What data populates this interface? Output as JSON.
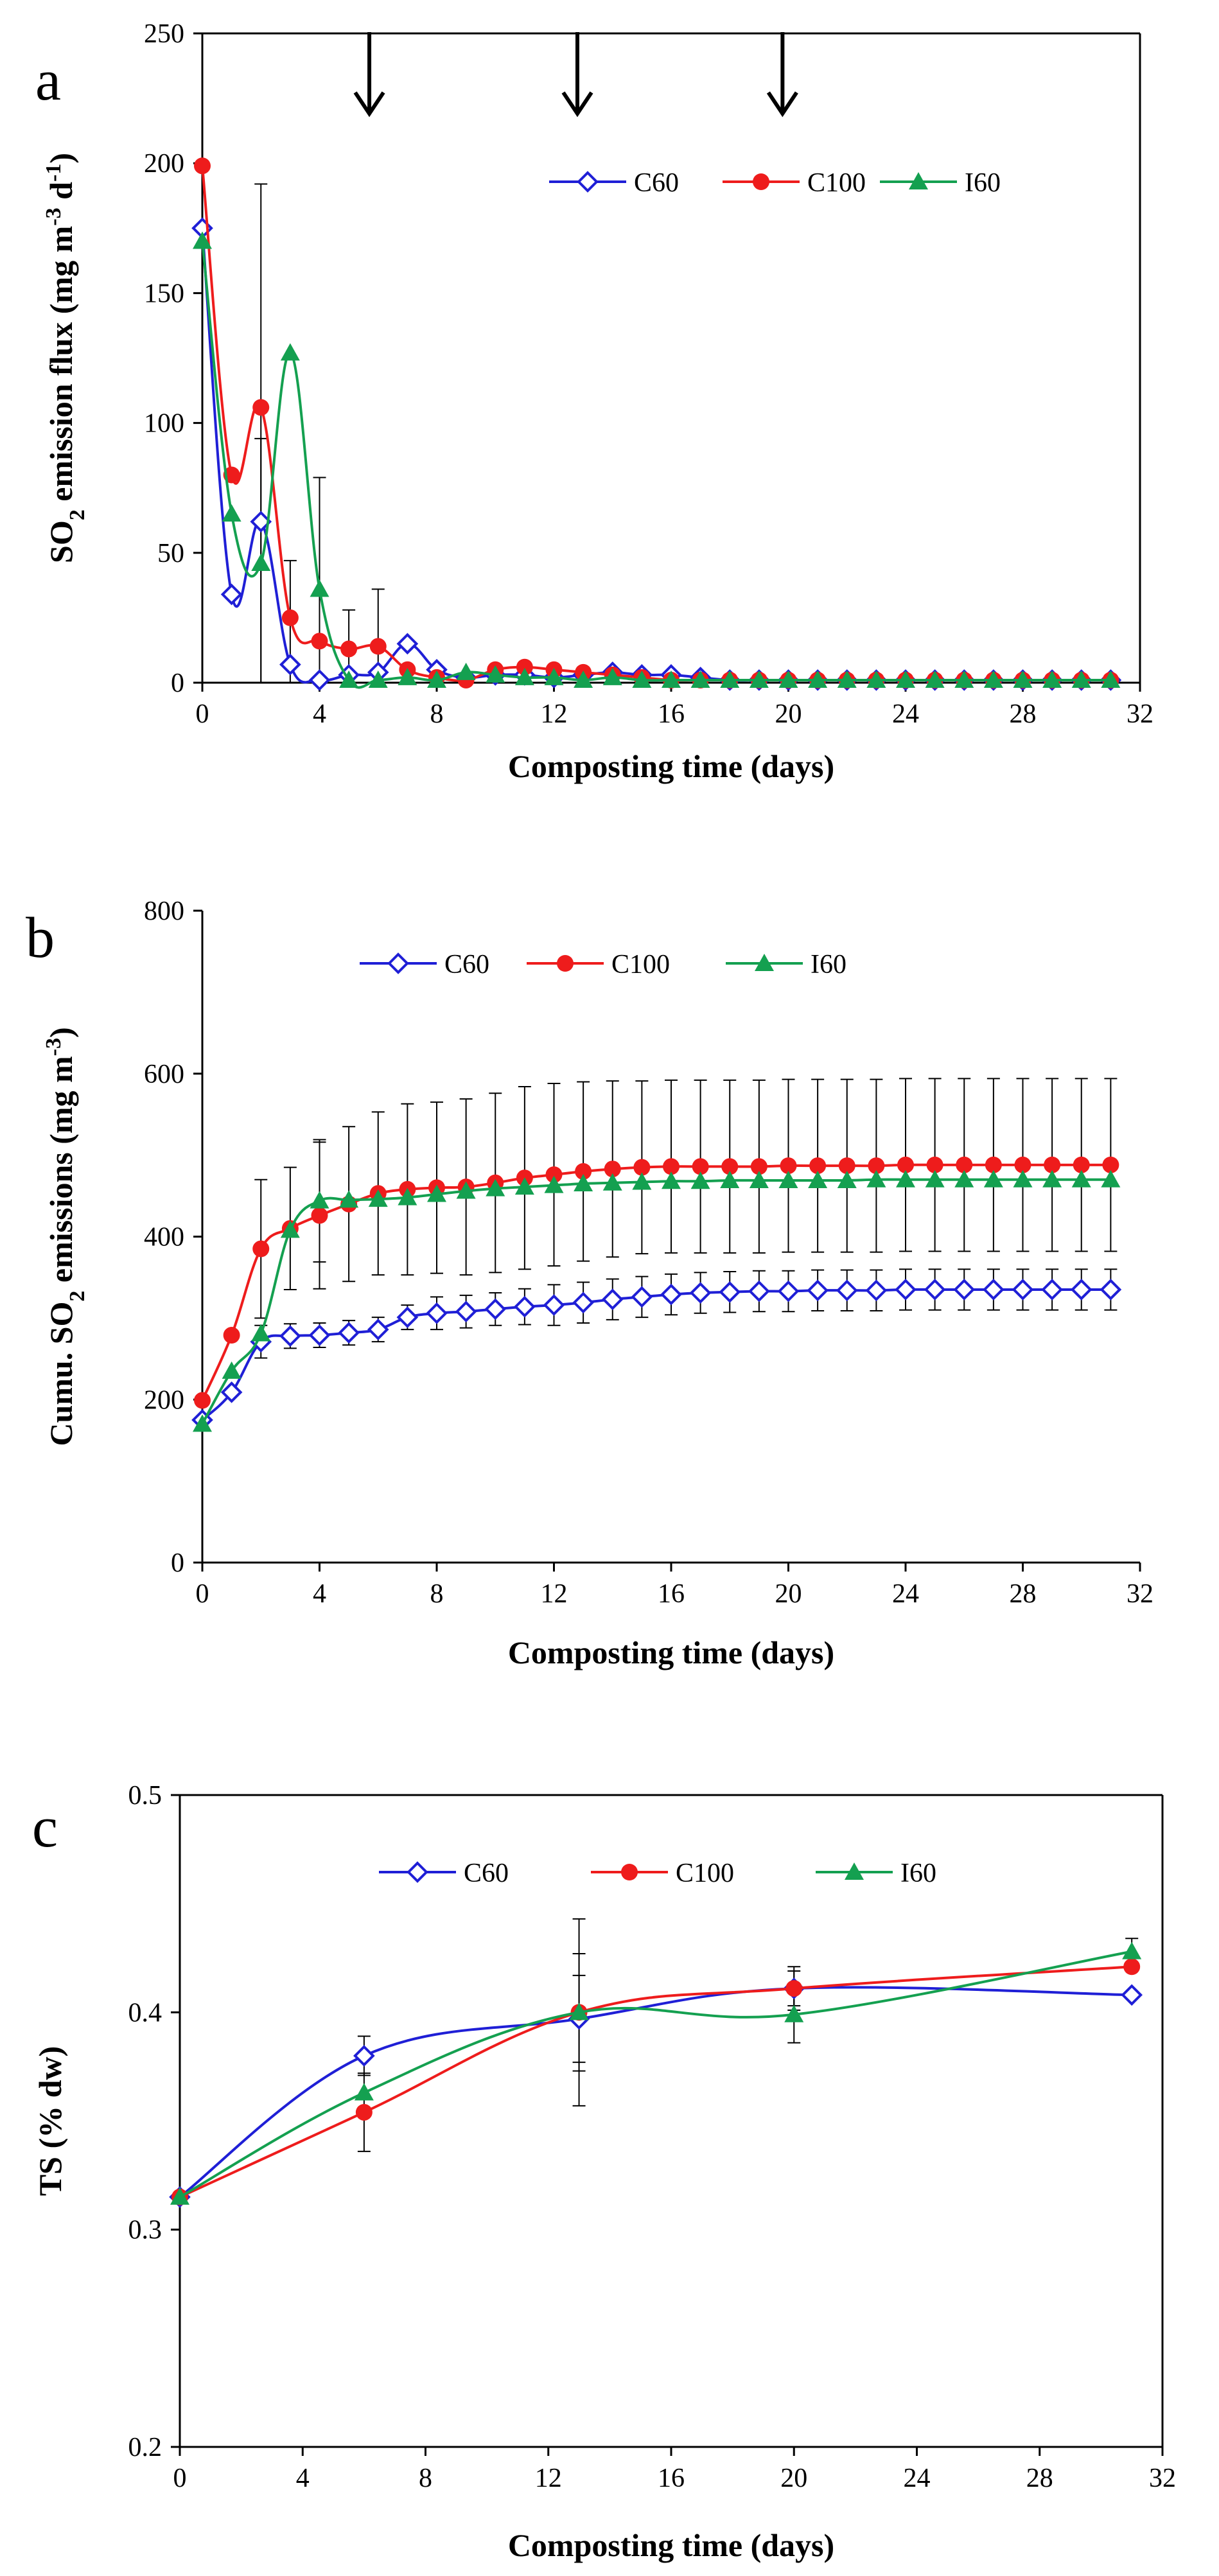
{
  "chart_data": [
    {
      "panel": "a",
      "type": "line",
      "title": "",
      "xlabel": "Composting time (days)",
      "ylabel_parts": [
        "SO",
        "2",
        " emission flux  (mg m",
        "-3",
        " d",
        "-1",
        ")"
      ],
      "xlim": [
        0,
        32
      ],
      "ylim": [
        0,
        250
      ],
      "xticks": [
        "0",
        "4",
        "8",
        "12",
        "16",
        "20",
        "24",
        "28",
        "32"
      ],
      "yticks": [
        "0",
        "50",
        "100",
        "150",
        "200",
        "250"
      ],
      "arrows_at_days": [
        5.7,
        12.8,
        19.8
      ],
      "legend": [
        "C60",
        "C100",
        "I60"
      ],
      "series": [
        {
          "name": "C60",
          "color": "#1f1fd6",
          "marker": "diamond-open",
          "x": [
            0,
            1,
            2,
            3,
            4,
            5,
            6,
            7,
            8,
            9,
            10,
            11,
            12,
            13,
            14,
            15,
            16,
            17,
            18,
            19,
            20,
            21,
            22,
            23,
            24,
            25,
            26,
            27,
            28,
            29,
            30,
            31
          ],
          "y": [
            175,
            34,
            62,
            7,
            1,
            3,
            4,
            15,
            5,
            2,
            3,
            3,
            2,
            3,
            4,
            3,
            3,
            2,
            1,
            1,
            1,
            1,
            1,
            1,
            1,
            1,
            1,
            1,
            1,
            1,
            1,
            1
          ],
          "err": [
            0,
            0,
            130,
            40,
            0,
            0,
            0,
            0,
            0,
            0,
            0,
            0,
            0,
            0,
            0,
            0,
            0,
            0,
            0,
            0,
            0,
            0,
            0,
            0,
            0,
            0,
            0,
            0,
            0,
            0,
            0,
            0
          ]
        },
        {
          "name": "C100",
          "color": "#ee1c1c",
          "marker": "circle",
          "x": [
            0,
            1,
            2,
            3,
            4,
            5,
            6,
            7,
            8,
            9,
            10,
            11,
            12,
            13,
            14,
            15,
            16,
            17,
            18,
            19,
            20,
            21,
            22,
            23,
            24,
            25,
            26,
            27,
            28,
            29,
            30,
            31
          ],
          "y": [
            199,
            80,
            106,
            25,
            16,
            13,
            14,
            5,
            2,
            1,
            5,
            6,
            5,
            4,
            3,
            2,
            1,
            1,
            1,
            1,
            1,
            1,
            1,
            1,
            1,
            1,
            1,
            1,
            1,
            1,
            1,
            1
          ],
          "err": [
            0,
            0,
            0,
            0,
            0,
            15,
            22,
            0,
            0,
            0,
            0,
            0,
            0,
            0,
            0,
            0,
            0,
            0,
            0,
            0,
            0,
            0,
            0,
            0,
            0,
            0,
            0,
            0,
            0,
            0,
            0,
            0
          ]
        },
        {
          "name": "I60",
          "color": "#14a050",
          "marker": "triangle",
          "x": [
            0,
            1,
            2,
            3,
            4,
            5,
            6,
            7,
            8,
            9,
            10,
            11,
            12,
            13,
            14,
            15,
            16,
            17,
            18,
            19,
            20,
            21,
            22,
            23,
            24,
            25,
            26,
            27,
            28,
            29,
            30,
            31
          ],
          "y": [
            170,
            65,
            46,
            127,
            36,
            1,
            1,
            2,
            1,
            4,
            3,
            2,
            2,
            1,
            2,
            1,
            1,
            1,
            1,
            1,
            1,
            1,
            1,
            1,
            1,
            1,
            1,
            1,
            1,
            1,
            1,
            1
          ],
          "err": [
            0,
            0,
            48,
            0,
            43,
            0,
            0,
            0,
            0,
            0,
            0,
            0,
            0,
            0,
            0,
            0,
            0,
            0,
            0,
            0,
            0,
            0,
            0,
            0,
            0,
            0,
            0,
            0,
            0,
            0,
            0,
            0
          ]
        }
      ]
    },
    {
      "panel": "b",
      "type": "line",
      "title": "",
      "xlabel": "Composting time (days)",
      "ylabel_parts": [
        "Cumu. SO",
        "2",
        " emissions (mg m",
        "-3",
        ")"
      ],
      "xlim": [
        0,
        32
      ],
      "ylim": [
        0,
        800
      ],
      "xticks": [
        "0",
        "4",
        "8",
        "12",
        "16",
        "20",
        "24",
        "28",
        "32"
      ],
      "yticks": [
        "0",
        "200",
        "400",
        "600",
        "800"
      ],
      "legend": [
        "C60",
        "C100",
        "I60"
      ],
      "series": [
        {
          "name": "C60",
          "color": "#1f1fd6",
          "marker": "diamond-open",
          "x": [
            0,
            1,
            2,
            3,
            4,
            5,
            6,
            7,
            8,
            9,
            10,
            11,
            12,
            13,
            14,
            15,
            16,
            17,
            18,
            19,
            20,
            21,
            22,
            23,
            24,
            25,
            26,
            27,
            28,
            29,
            30,
            31
          ],
          "y": [
            175,
            209,
            271,
            278,
            279,
            282,
            286,
            301,
            306,
            308,
            311,
            314,
            316,
            319,
            323,
            326,
            329,
            331,
            332,
            333,
            333,
            334,
            334,
            334,
            335,
            335,
            335,
            335,
            335,
            335,
            335,
            335
          ],
          "err": [
            0,
            0,
            20,
            15,
            15,
            15,
            15,
            15,
            20,
            20,
            20,
            22,
            25,
            25,
            25,
            25,
            25,
            25,
            25,
            25,
            25,
            25,
            25,
            25,
            25,
            25,
            25,
            25,
            25,
            25,
            25,
            25
          ]
        },
        {
          "name": "C100",
          "color": "#ee1c1c",
          "marker": "circle",
          "x": [
            0,
            1,
            2,
            3,
            4,
            5,
            6,
            7,
            8,
            9,
            10,
            11,
            12,
            13,
            14,
            15,
            16,
            17,
            18,
            19,
            20,
            21,
            22,
            23,
            24,
            25,
            26,
            27,
            28,
            29,
            30,
            31
          ],
          "y": [
            199,
            279,
            385,
            410,
            426,
            440,
            453,
            458,
            460,
            461,
            466,
            472,
            476,
            480,
            483,
            485,
            486,
            486,
            486,
            486,
            487,
            487,
            487,
            487,
            488,
            488,
            488,
            488,
            488,
            488,
            488,
            488
          ],
          "err": [
            0,
            0,
            85,
            75,
            90,
            95,
            100,
            105,
            105,
            108,
            110,
            112,
            112,
            110,
            108,
            106,
            106,
            106,
            106,
            106,
            106,
            106,
            106,
            106,
            106,
            106,
            106,
            106,
            106,
            106,
            106,
            106
          ]
        },
        {
          "name": "I60",
          "color": "#14a050",
          "marker": "triangle",
          "x": [
            0,
            1,
            2,
            3,
            4,
            5,
            6,
            7,
            8,
            9,
            10,
            11,
            12,
            13,
            14,
            15,
            16,
            17,
            18,
            19,
            20,
            21,
            22,
            23,
            24,
            25,
            26,
            27,
            28,
            29,
            30,
            31
          ],
          "y": [
            170,
            235,
            281,
            408,
            444,
            445,
            446,
            448,
            452,
            456,
            459,
            461,
            463,
            465,
            466,
            467,
            468,
            468,
            469,
            469,
            469,
            469,
            469,
            470,
            470,
            470,
            470,
            470,
            470,
            470,
            470,
            470
          ],
          "err": [
            0,
            0,
            0,
            0,
            75,
            0,
            0,
            0,
            0,
            0,
            0,
            0,
            0,
            0,
            0,
            0,
            0,
            0,
            0,
            0,
            0,
            0,
            0,
            0,
            0,
            0,
            0,
            0,
            0,
            0,
            0,
            0
          ]
        }
      ]
    },
    {
      "panel": "c",
      "type": "line",
      "title": "",
      "xlabel": "Composting time (days)",
      "ylabel_parts": [
        "TS (% dw)"
      ],
      "xlim": [
        0,
        32
      ],
      "ylim": [
        0.2,
        0.5
      ],
      "xticks": [
        "0",
        "4",
        "8",
        "12",
        "16",
        "20",
        "24",
        "28",
        "32"
      ],
      "yticks": [
        "0.2",
        "0.3",
        "0.4",
        "0.5"
      ],
      "legend": [
        "C60",
        "C100",
        "I60"
      ],
      "series": [
        {
          "name": "C60",
          "color": "#1f1fd6",
          "marker": "diamond-open",
          "x": [
            0,
            6,
            13,
            20,
            31
          ],
          "y": [
            0.315,
            0.38,
            0.397,
            0.411,
            0.408
          ],
          "err": [
            0,
            0.009,
            0.02,
            0.01,
            0
          ]
        },
        {
          "name": "C100",
          "color": "#ee1c1c",
          "marker": "circle",
          "x": [
            0,
            6,
            13,
            20,
            31
          ],
          "y": [
            0.315,
            0.354,
            0.4,
            0.411,
            0.421
          ],
          "err": [
            0,
            0.018,
            0.043,
            0.008,
            0
          ]
        },
        {
          "name": "I60",
          "color": "#14a050",
          "marker": "triangle",
          "x": [
            0,
            6,
            13,
            20,
            31
          ],
          "y": [
            0.315,
            0.363,
            0.4,
            0.399,
            0.428
          ],
          "err": [
            0,
            0,
            0.027,
            0.013,
            0.006
          ]
        }
      ]
    }
  ]
}
